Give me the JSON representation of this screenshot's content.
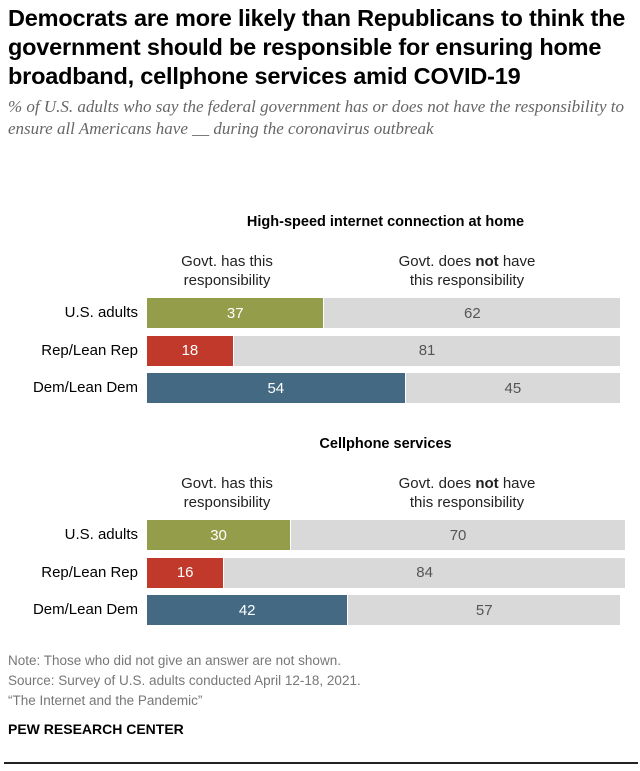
{
  "title": "Democrats are more likely than Republicans to think the government should be responsible for ensuring home broadband, cellphone services amid COVID-19",
  "subtitle": "% of U.S. adults who say the federal government has or does not have the responsibility to ensure all Americans have __ during the coronavirus outbreak",
  "colors": {
    "U.S. adults": "#949e4a",
    "Rep/Lean Rep": "#c0392b",
    "Dem/Lean Dem": "#436983",
    "not": "#d9d9d9"
  },
  "chart_data": [
    {
      "type": "bar",
      "orientation": "horizontal-stacked",
      "title": "High-speed internet connection at home",
      "categories": [
        "U.S. adults",
        "Rep/Lean Rep",
        "Dem/Lean Dem"
      ],
      "series": [
        {
          "name": "Govt. has this responsibility",
          "values": [
            37,
            18,
            54
          ]
        },
        {
          "name": "Govt. does not have this responsibility",
          "values": [
            62,
            81,
            45
          ]
        }
      ],
      "xlim": [
        0,
        100
      ]
    },
    {
      "type": "bar",
      "orientation": "horizontal-stacked",
      "title": "Cellphone services",
      "categories": [
        "U.S. adults",
        "Rep/Lean Rep",
        "Dem/Lean Dem"
      ],
      "series": [
        {
          "name": "Govt. has this responsibility",
          "values": [
            30,
            16,
            42
          ]
        },
        {
          "name": "Govt. does not have this responsibility",
          "values": [
            70,
            84,
            57
          ]
        }
      ],
      "xlim": [
        0,
        100
      ]
    }
  ],
  "headers": {
    "has_1": "Govt. has this",
    "has_2": "responsibility",
    "not_pre": "Govt. does ",
    "not_bold": "not",
    "not_post": " have",
    "not_2": "this responsibility"
  },
  "footer": {
    "note": "Note: Those who did not give an answer are not shown.",
    "source": "Source: Survey of U.S. adults conducted April 12-18, 2021.",
    "report": "“The Internet and the Pandemic”",
    "brand": "PEW RESEARCH CENTER"
  }
}
